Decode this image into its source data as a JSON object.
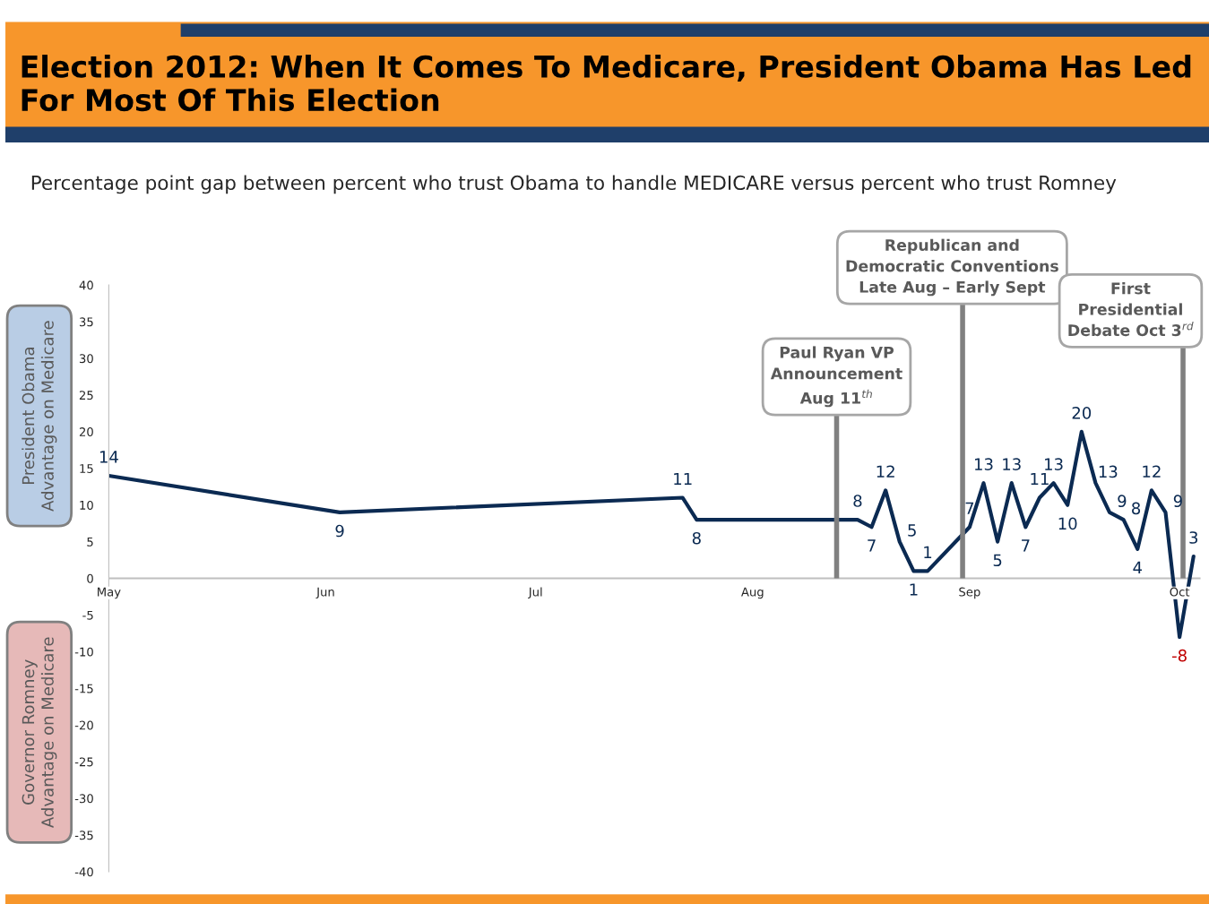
{
  "chart_data": {
    "type": "line",
    "title": "Election 2012: When It Comes To Medicare, President Obama Has Led For Most Of This Election",
    "subtitle": "Percentage point gap between percent who trust Obama to handle MEDICARE versus percent who trust Romney",
    "ylabel": "President Obama\nAdvantage on Medicare",
    "annotations": [
      "Governor Romney\nAdvantage on Medicare"
    ],
    "x": [
      "2012-05-01",
      "2012-06-03",
      "2012-07-22",
      "2012-07-24",
      "2012-08-16",
      "2012-08-18",
      "2012-08-20",
      "2012-08-22",
      "2012-08-24",
      "2012-08-26",
      "2012-09-01",
      "2012-09-03",
      "2012-09-05",
      "2012-09-07",
      "2012-09-09",
      "2012-09-11",
      "2012-09-13",
      "2012-09-15",
      "2012-09-17",
      "2012-09-19",
      "2012-09-21",
      "2012-09-23",
      "2012-09-25",
      "2012-09-27",
      "2012-09-29",
      "2012-10-01",
      "2012-10-03"
    ],
    "series": [
      {
        "color": "#0b2a52",
        "values": [
          14,
          9,
          11,
          8,
          8,
          7,
          12,
          5,
          1,
          1,
          7,
          13,
          5,
          13,
          7,
          11,
          13,
          10,
          20,
          13,
          9,
          8,
          4,
          12,
          9,
          -8,
          3
        ]
      }
    ],
    "data_labels": true,
    "marker": "none",
    "line_style": "solid",
    "grid": false,
    "legend": false,
    "xlim": [
      "2012-05-01",
      "2012-10-04"
    ],
    "xticks": [
      {
        "value": "2012-05-01",
        "label": "May"
      },
      {
        "value": "2012-06-01",
        "label": "Jun"
      },
      {
        "value": "2012-07-01",
        "label": "Jul"
      },
      {
        "value": "2012-08-01",
        "label": "Aug"
      },
      {
        "value": "2012-09-01",
        "label": "Sep"
      },
      {
        "value": "2012-10-01",
        "label": "Oct"
      }
    ],
    "ylim": [
      -40,
      40
    ],
    "yticks": [
      -40,
      -35,
      -30,
      -25,
      -20,
      -15,
      -10,
      -5,
      0,
      5,
      10,
      15,
      20,
      25,
      30,
      35,
      40
    ],
    "ref_lines": [
      {
        "axis": "x",
        "value": "2012-08-13",
        "label": "Paul Ryan VP\nAnnouncement\nAug 11$^{th}$",
        "color": "#808080"
      },
      {
        "axis": "x",
        "value": "2012-08-31",
        "label": "Republican and\nDemocratic Conventions\nLate Aug – Early Sept",
        "color": "#808080"
      },
      {
        "axis": "x",
        "value": "2012-10-01T12:00",
        "label": "First\nPresidential\nDebate Oct 3$^{rd}$",
        "color": "#808080"
      }
    ]
  }
}
